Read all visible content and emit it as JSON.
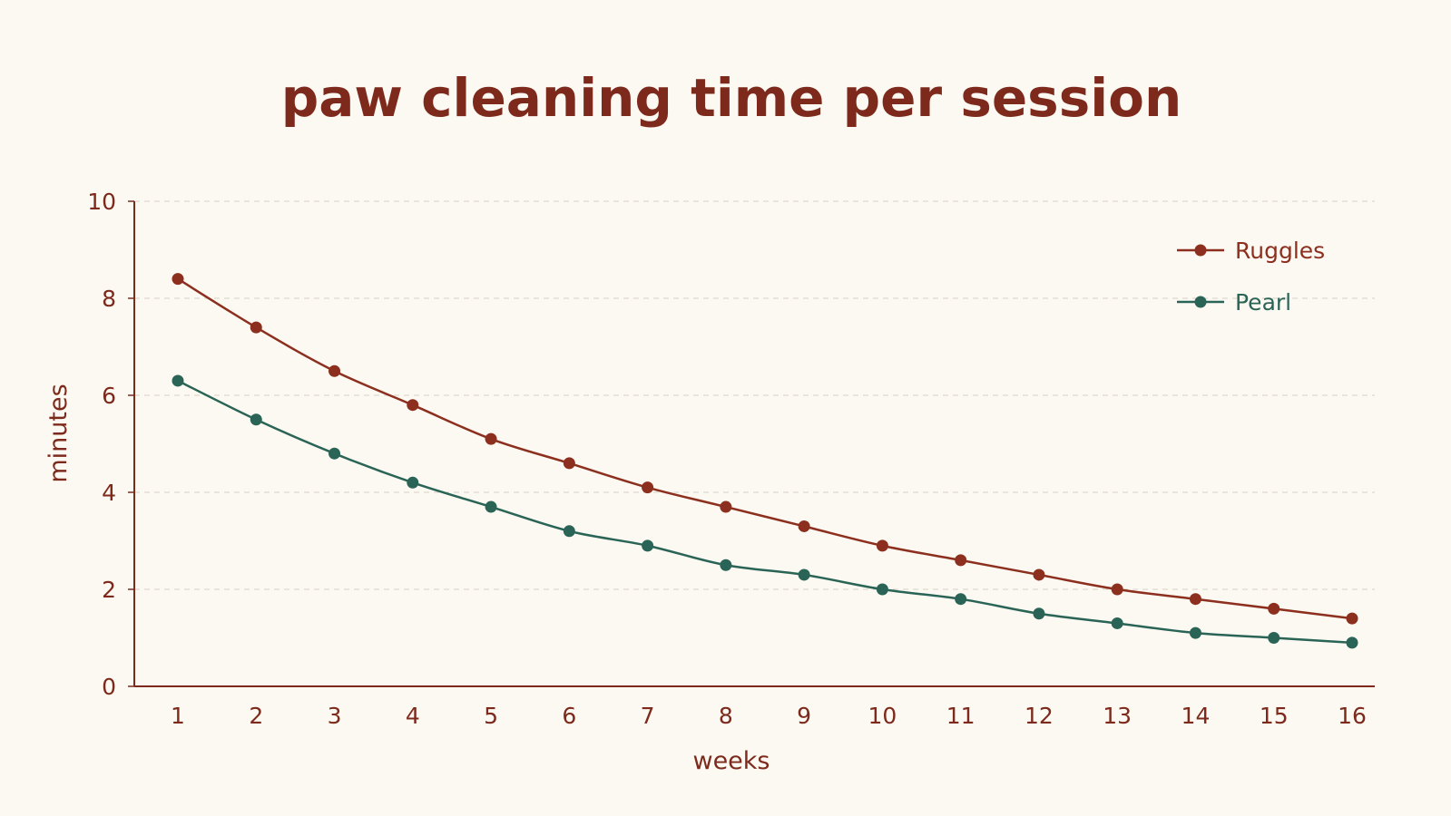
{
  "colors": {
    "background": "#fcf9f2",
    "text": "#7d2a1c",
    "axis": "#7d2a1c",
    "grid": "#ddd8d0"
  },
  "chart_data": {
    "type": "line",
    "title": "paw cleaning time per session",
    "xlabel": "weeks",
    "ylabel": "minutes",
    "x": [
      1,
      2,
      3,
      4,
      5,
      6,
      7,
      8,
      9,
      10,
      11,
      12,
      13,
      14,
      15,
      16
    ],
    "ylim": [
      0,
      10
    ],
    "yticks": [
      0,
      2,
      4,
      6,
      8,
      10
    ],
    "grid": true,
    "legend_position": "top-right",
    "series": [
      {
        "name": "Ruggles",
        "color": "#8c2f1e",
        "values": [
          8.4,
          7.4,
          6.5,
          5.8,
          5.1,
          4.6,
          4.1,
          3.7,
          3.3,
          2.9,
          2.6,
          2.3,
          2.0,
          1.8,
          1.6,
          1.4
        ]
      },
      {
        "name": "Pearl",
        "color": "#2a6456",
        "values": [
          6.3,
          5.5,
          4.8,
          4.2,
          3.7,
          3.2,
          2.9,
          2.5,
          2.3,
          2.0,
          1.8,
          1.5,
          1.3,
          1.1,
          1.0,
          0.9
        ]
      }
    ]
  }
}
